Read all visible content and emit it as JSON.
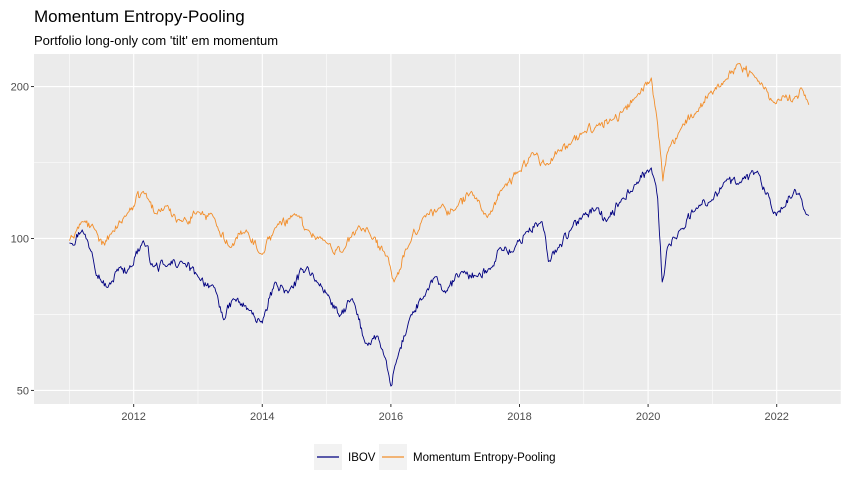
{
  "chart_data": {
    "type": "line",
    "title": "Momentum Entropy-Pooling",
    "subtitle": "Portfolio long-only com 'tilt' em momentum",
    "xlabel": "",
    "ylabel": "",
    "y_scale": "log",
    "xlim": [
      2010.45,
      2023.0
    ],
    "ylim": [
      47,
      232
    ],
    "x_ticks": [
      2012,
      2014,
      2016,
      2018,
      2020,
      2022
    ],
    "x_tick_labels": [
      "2012",
      "2014",
      "2016",
      "2018",
      "2020",
      "2022"
    ],
    "y_ticks": [
      50,
      100,
      200
    ],
    "y_tick_labels": [
      "50",
      "100",
      "200"
    ],
    "grid": true,
    "legend_position": "bottom",
    "series": [
      {
        "name": "IBOV",
        "color": "#000080",
        "x": [
          2011.0,
          2011.2,
          2011.35,
          2011.5,
          2011.6,
          2011.8,
          2011.9,
          2012.15,
          2012.3,
          2012.5,
          2012.75,
          2013.0,
          2013.25,
          2013.4,
          2013.55,
          2013.8,
          2014.0,
          2014.2,
          2014.4,
          2014.7,
          2014.85,
          2015.0,
          2015.2,
          2015.4,
          2015.6,
          2015.8,
          2016.0,
          2016.05,
          2016.3,
          2016.5,
          2016.7,
          2016.85,
          2017.1,
          2017.35,
          2017.5,
          2017.7,
          2017.9,
          2018.1,
          2018.35,
          2018.45,
          2018.6,
          2018.8,
          2019.0,
          2019.2,
          2019.35,
          2019.6,
          2019.8,
          2020.05,
          2020.15,
          2020.22,
          2020.3,
          2020.5,
          2020.75,
          2020.95,
          2021.2,
          2021.4,
          2021.7,
          2021.95,
          2022.1,
          2022.25,
          2022.35,
          2022.5
        ],
        "values": [
          98,
          104,
          94,
          82,
          80,
          88,
          86,
          99,
          88,
          88,
          90,
          84,
          80,
          69,
          76,
          72,
          68,
          82,
          78,
          88,
          82,
          78,
          70,
          76,
          62,
          64,
          51,
          55,
          70,
          76,
          84,
          78,
          86,
          84,
          86,
          96,
          94,
          103,
          108,
          90,
          96,
          104,
          112,
          115,
          108,
          120,
          128,
          138,
          120,
          82,
          96,
          104,
          115,
          118,
          130,
          128,
          136,
          112,
          115,
          122,
          123,
          111
        ]
      },
      {
        "name": "Momentum Entropy-Pooling",
        "color": "#f28e2b",
        "x": [
          2011.0,
          2011.2,
          2011.4,
          2011.55,
          2011.65,
          2011.9,
          2012.15,
          2012.35,
          2012.5,
          2012.75,
          2013.0,
          2013.25,
          2013.5,
          2013.75,
          2014.0,
          2014.2,
          2014.5,
          2014.7,
          2015.0,
          2015.25,
          2015.5,
          2015.7,
          2015.9,
          2016.05,
          2016.3,
          2016.5,
          2016.75,
          2017.0,
          2017.25,
          2017.5,
          2017.75,
          2018.0,
          2018.2,
          2018.45,
          2018.6,
          2018.8,
          2019.0,
          2019.2,
          2019.45,
          2019.6,
          2019.8,
          2020.05,
          2020.15,
          2020.23,
          2020.3,
          2020.5,
          2020.75,
          2020.95,
          2021.2,
          2021.4,
          2021.65,
          2021.95,
          2022.1,
          2022.3,
          2022.4,
          2022.5
        ],
        "values": [
          99,
          108,
          104,
          97,
          102,
          112,
          124,
          112,
          116,
          108,
          113,
          110,
          96,
          104,
          93,
          105,
          112,
          104,
          98,
          94,
          106,
          100,
          94,
          82,
          98,
          110,
          115,
          114,
          124,
          110,
          126,
          136,
          148,
          140,
          150,
          154,
          162,
          168,
          172,
          178,
          190,
          208,
          168,
          130,
          148,
          164,
          178,
          194,
          206,
          222,
          210,
          186,
          192,
          191,
          197,
          184
        ]
      }
    ]
  }
}
